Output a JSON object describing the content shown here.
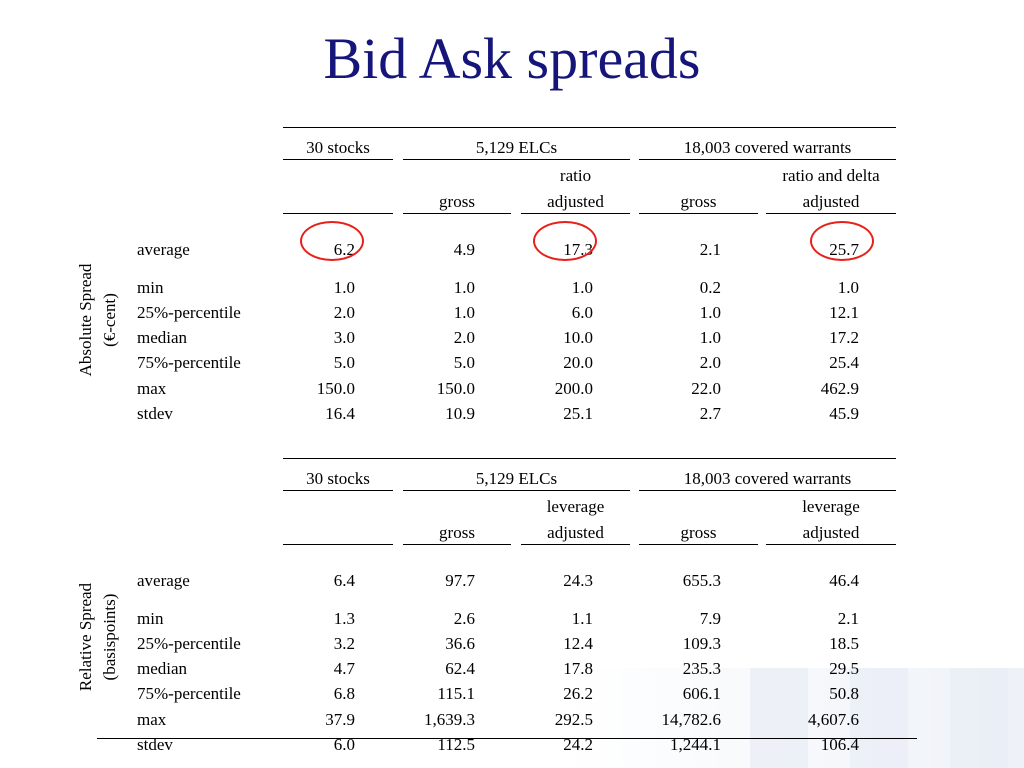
{
  "title": "Bid Ask spreads",
  "colors": {
    "title": "#15157a",
    "highlight_circle": "#e8201a"
  },
  "sections": [
    {
      "label_line1": "Absolute Spread",
      "label_line2": "(€-cent)",
      "groups": [
        "30 stocks",
        "5,129 ELCs",
        "18,003 covered warrants"
      ],
      "sub_top": {
        "elc_adj": "ratio",
        "cw_adj": "ratio and delta"
      },
      "sub_bottom": {
        "elc_gross": "gross",
        "elc_adj": "adjusted",
        "cw_gross": "gross",
        "cw_adj": "adjusted"
      },
      "rows": [
        {
          "stat": "average",
          "values": [
            "6.2",
            "4.9",
            "17.3",
            "2.1",
            "25.7"
          ]
        },
        {
          "stat": "min",
          "values": [
            "1.0",
            "1.0",
            "1.0",
            "0.2",
            "1.0"
          ]
        },
        {
          "stat": "25%-percentile",
          "values": [
            "2.0",
            "1.0",
            "6.0",
            "1.0",
            "12.1"
          ]
        },
        {
          "stat": "median",
          "values": [
            "3.0",
            "2.0",
            "10.0",
            "1.0",
            "17.2"
          ]
        },
        {
          "stat": "75%-percentile",
          "values": [
            "5.0",
            "5.0",
            "20.0",
            "2.0",
            "25.4"
          ]
        },
        {
          "stat": "max",
          "values": [
            "150.0",
            "150.0",
            "200.0",
            "22.0",
            "462.9"
          ]
        },
        {
          "stat": "stdev",
          "values": [
            "16.4",
            "10.9",
            "25.1",
            "2.7",
            "45.9"
          ]
        }
      ]
    },
    {
      "label_line1": "Relative Spread",
      "label_line2": "(basispoints)",
      "groups": [
        "30 stocks",
        "5,129 ELCs",
        "18,003 covered warrants"
      ],
      "sub_top": {
        "elc_adj": "leverage",
        "cw_adj": "leverage"
      },
      "sub_bottom": {
        "elc_gross": "gross",
        "elc_adj": "adjusted",
        "cw_gross": "gross",
        "cw_adj": "adjusted"
      },
      "rows": [
        {
          "stat": "average",
          "values": [
            "6.4",
            "97.7",
            "24.3",
            "655.3",
            "46.4"
          ]
        },
        {
          "stat": "min",
          "values": [
            "1.3",
            "2.6",
            "1.1",
            "7.9",
            "2.1"
          ]
        },
        {
          "stat": "25%-percentile",
          "values": [
            "3.2",
            "36.6",
            "12.4",
            "109.3",
            "18.5"
          ]
        },
        {
          "stat": "median",
          "values": [
            "4.7",
            "62.4",
            "17.8",
            "235.3",
            "29.5"
          ]
        },
        {
          "stat": "75%-percentile",
          "values": [
            "6.8",
            "115.1",
            "26.2",
            "606.1",
            "50.8"
          ]
        },
        {
          "stat": "max",
          "values": [
            "37.9",
            "1,639.3",
            "292.5",
            "14,782.6",
            "4,607.6"
          ]
        },
        {
          "stat": "stdev",
          "values": [
            "6.0",
            "112.5",
            "24.2",
            "1,244.1",
            "106.4"
          ]
        }
      ]
    }
  ]
}
